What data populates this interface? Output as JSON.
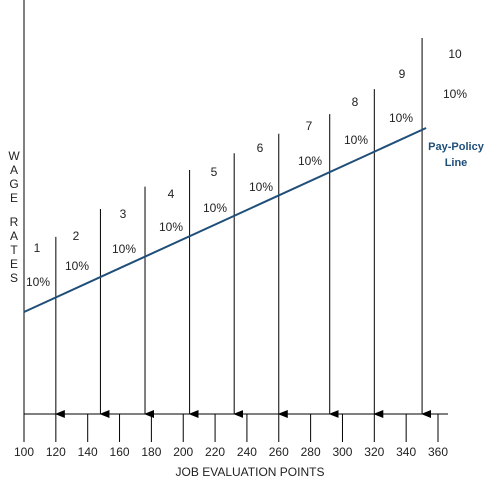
{
  "chart_data": {
    "type": "line",
    "xlabel": "JOB EVALUATION POINTS",
    "ylabel": "WAGE RATES",
    "xlim": [
      100,
      360
    ],
    "x_ticks": [
      "100",
      "120",
      "140",
      "160",
      "180",
      "200",
      "220",
      "240",
      "260",
      "280",
      "300",
      "320",
      "340",
      "360"
    ],
    "pay_policy_line": {
      "name": "Pay-Policy Line",
      "name_lines": [
        "Pay-Policy",
        "Line"
      ],
      "color": "#1f4e79",
      "x": [
        100,
        350
      ],
      "y_relative": [
        0.34,
        1.0
      ]
    },
    "pay_grades": [
      {
        "grade": "1",
        "x": 120,
        "top": 0.38,
        "label": "10%"
      },
      {
        "grade": "2",
        "x": 148,
        "top": 0.48,
        "label": "10%"
      },
      {
        "grade": "3",
        "x": 176,
        "top": 0.56,
        "label": "10%"
      },
      {
        "grade": "4",
        "x": 204,
        "top": 0.62,
        "label": "10%"
      },
      {
        "grade": "5",
        "x": 232,
        "top": 0.68,
        "label": "10%"
      },
      {
        "grade": "6",
        "x": 260,
        "top": 0.75,
        "label": "10%"
      },
      {
        "grade": "7",
        "x": 292,
        "top": 0.82,
        "label": "10%"
      },
      {
        "grade": "8",
        "x": 320,
        "top": 0.91,
        "label": "10%"
      },
      {
        "grade": "9",
        "x": 350,
        "top": 1.0,
        "label": "10%"
      },
      {
        "grade": "10",
        "x": null,
        "top": null,
        "label": "10%"
      }
    ],
    "colors": {
      "axis": "#000000",
      "policy_line": "#1f4e79",
      "policy_label": "#1f4e79"
    }
  }
}
